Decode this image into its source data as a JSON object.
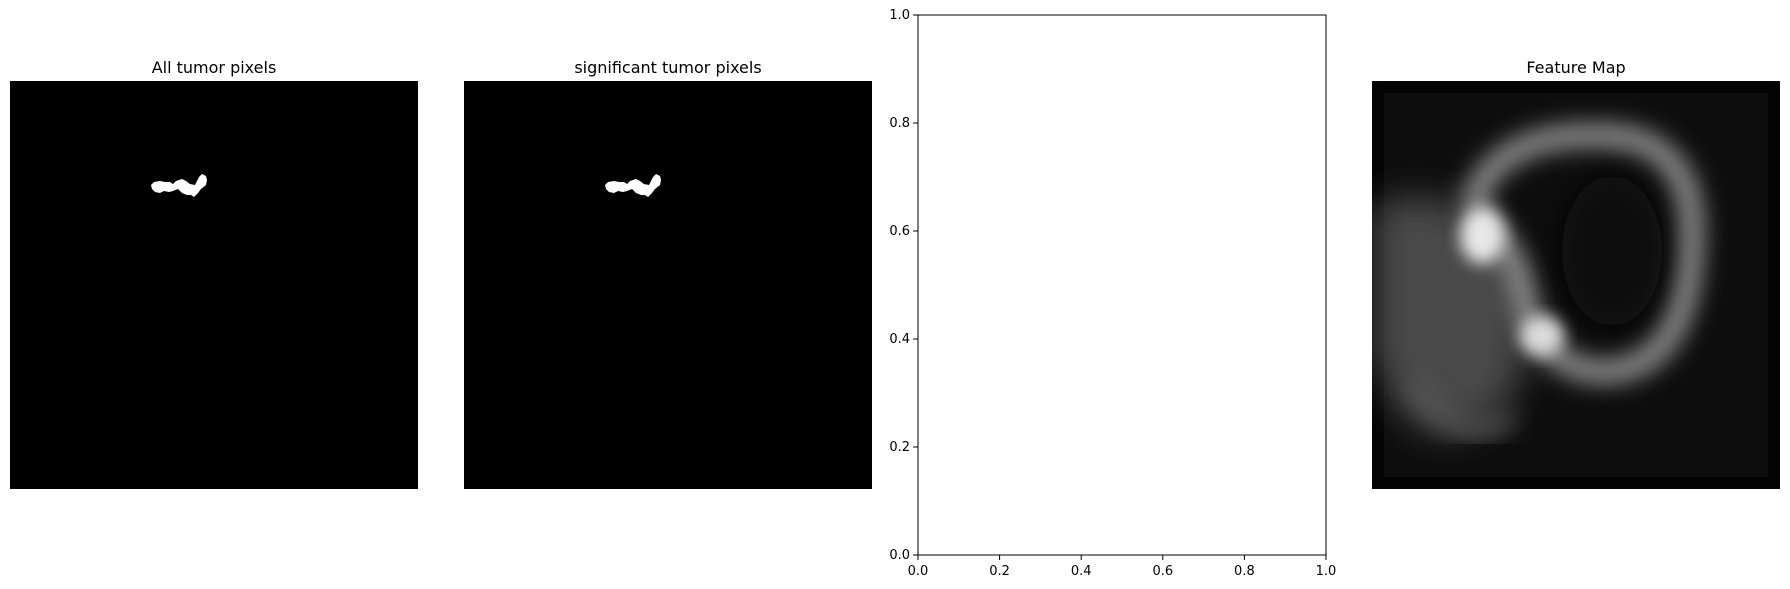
{
  "panels": [
    {
      "title": "All tumor pixels"
    },
    {
      "title": "significant tumor pixels"
    },
    {
      "title": ""
    },
    {
      "title": "Feature Map"
    }
  ],
  "colors": {
    "background": "#000000",
    "mask": "#ffffff",
    "axes": "#000000",
    "figure": "#ffffff"
  },
  "chart_data": [
    {
      "type": "heatmap",
      "title": "All tumor pixels",
      "colormap": "gray",
      "axis": "off",
      "description_values": {
        "min": 0,
        "max": 1
      }
    },
    {
      "type": "heatmap",
      "title": "significant tumor pixels",
      "colormap": "gray",
      "axis": "off",
      "description_values": {
        "min": 0,
        "max": 1
      }
    },
    {
      "type": "scatter",
      "title": "",
      "xlabel": "",
      "ylabel": "",
      "xlim": [
        0.0,
        1.0
      ],
      "ylim": [
        0.0,
        1.0
      ],
      "x_ticks": [
        "0.0",
        "0.2",
        "0.4",
        "0.6",
        "0.8",
        "1.0"
      ],
      "y_ticks": [
        "0.0",
        "0.2",
        "0.4",
        "0.6",
        "0.8",
        "1.0"
      ],
      "series": [],
      "grid": false
    },
    {
      "type": "heatmap",
      "title": "Feature Map",
      "colormap": "gray",
      "axis": "off"
    }
  ]
}
